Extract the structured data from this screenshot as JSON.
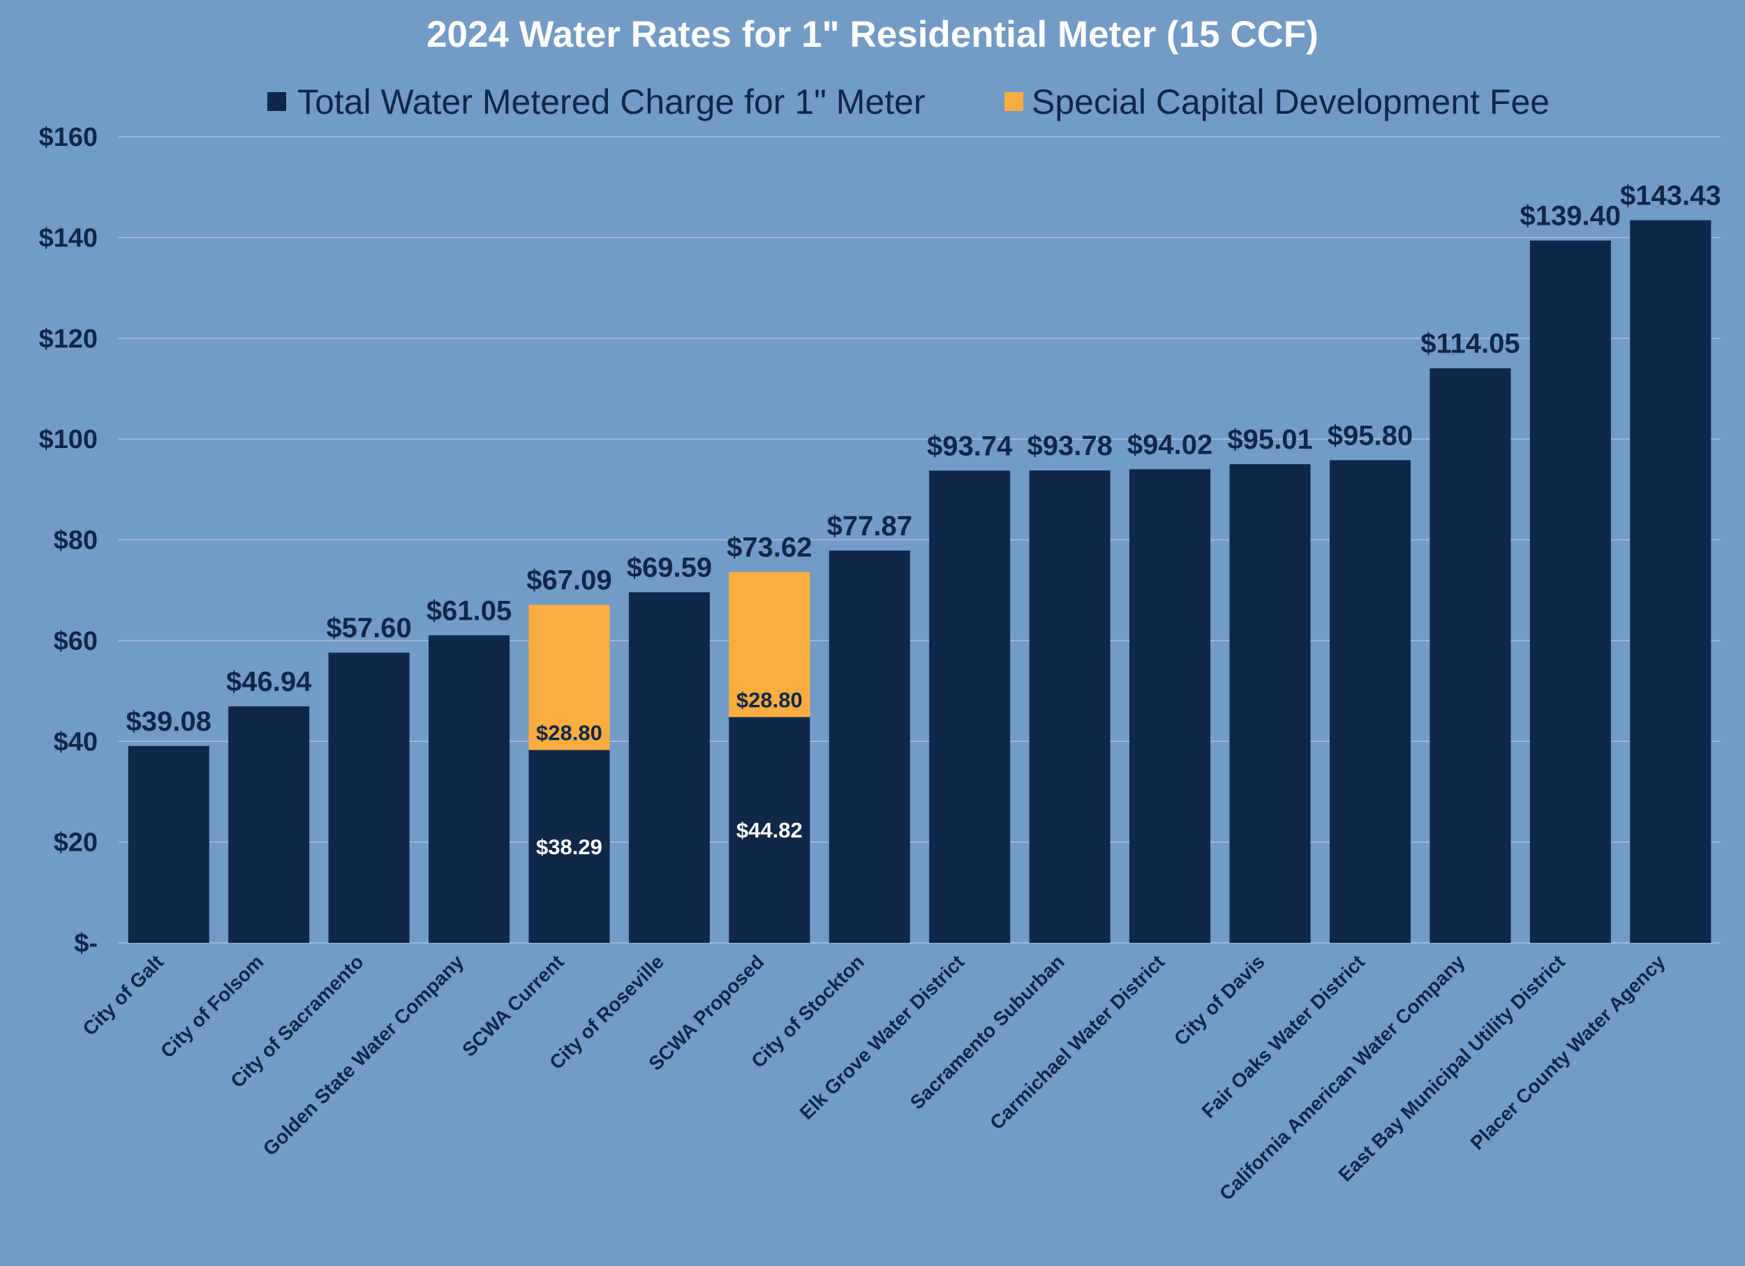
{
  "chart_data": {
    "type": "bar",
    "stacked": true,
    "title": "2024 Water Rates for 1\" Residential Meter (15 CCF)",
    "legend_position": "top",
    "grid": true,
    "ylim": [
      0,
      160
    ],
    "yticks": [
      0,
      20,
      40,
      60,
      80,
      100,
      120,
      140,
      160
    ],
    "ytick_labels": [
      "$-",
      "$20",
      "$40",
      "$60",
      "$80",
      "$100",
      "$120",
      "$140",
      "$160"
    ],
    "categories": [
      "City of Galt",
      "City of Folsom",
      "City of Sacramento",
      "Golden State Water Company",
      "SCWA Current",
      "City of Roseville",
      "SCWA Proposed",
      "City of Stockton",
      "Elk Grove Water District",
      "Sacramento Suburban",
      "Carmichael Water District",
      "City of Davis",
      "Fair Oaks Water District",
      "California American Water Company",
      "East Bay Municipal Utility District",
      "Placer County Water Agency"
    ],
    "series": [
      {
        "name": "Total Water Metered Charge for 1\" Meter",
        "color": "#0f2748",
        "values": [
          39.08,
          46.94,
          57.6,
          61.05,
          38.29,
          69.59,
          44.82,
          77.87,
          93.74,
          93.78,
          94.02,
          95.01,
          95.8,
          114.05,
          139.4,
          143.43
        ]
      },
      {
        "name": "Special Capital Development Fee",
        "color": "#fbad40",
        "values": [
          0,
          0,
          0,
          0,
          28.8,
          0,
          28.8,
          0,
          0,
          0,
          0,
          0,
          0,
          0,
          0,
          0
        ]
      }
    ],
    "segment_labels": [
      {
        "index": 4,
        "base": "$38.29",
        "fee": "$28.80"
      },
      {
        "index": 6,
        "base": "$44.82",
        "fee": "$28.80"
      }
    ],
    "total_labels": [
      "$39.08",
      "$46.94",
      "$57.60",
      "$61.05",
      "$67.09",
      "$69.59",
      "$73.62",
      "$77.87",
      "$93.74",
      "$93.78",
      "$94.02",
      "$95.01",
      "$95.80",
      "$114.05",
      "$139.40",
      "$143.43"
    ]
  }
}
